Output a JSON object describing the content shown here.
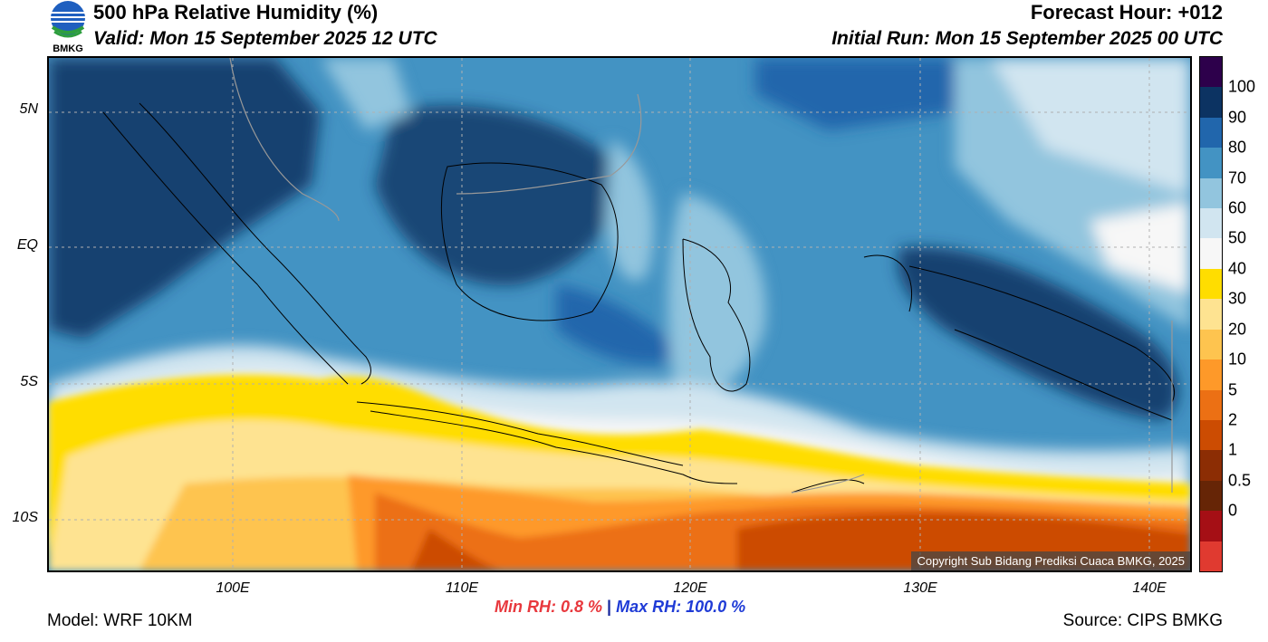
{
  "header": {
    "title": "500 hPa Relative Humidity (%)",
    "valid": "Valid: Mon 15 September 2025 12 UTC",
    "forecast_hour": "Forecast Hour: +012",
    "initial_run": "Initial Run: Mon 15 September 2025 00 UTC"
  },
  "logo": {
    "text": "BMKG",
    "icon": "bmkg-logo-icon"
  },
  "axes": {
    "lat_labels": [
      "5N",
      "EQ",
      "5S",
      "10S"
    ],
    "lon_labels": [
      "100E",
      "110E",
      "120E",
      "130E",
      "140E"
    ]
  },
  "copyright": "Copyright Sub Bidang Prediksi Cuaca BMKG, 2025",
  "colorbar": {
    "labels": [
      "100",
      "90",
      "80",
      "70",
      "60",
      "50",
      "40",
      "30",
      "20",
      "10",
      "5",
      "2",
      "1",
      "0.5",
      "0"
    ],
    "colors": [
      "#2d004b",
      "#0c3362",
      "#2166ac",
      "#4393c3",
      "#92c5de",
      "#d1e5f0",
      "#f7f7f7",
      "#ffdd00",
      "#fee391",
      "#fec44f",
      "#fe9929",
      "#ec7014",
      "#cc4c02",
      "#8c2d04",
      "#662506",
      "#a50f15",
      "#e03a30"
    ]
  },
  "stats": {
    "min": "Min RH:   0.8 %",
    "separator": "|",
    "max": "Max RH: 100.0 %"
  },
  "footer": {
    "model": "Model: WRF 10KM",
    "source": "Source: CIPS BMKG"
  }
}
